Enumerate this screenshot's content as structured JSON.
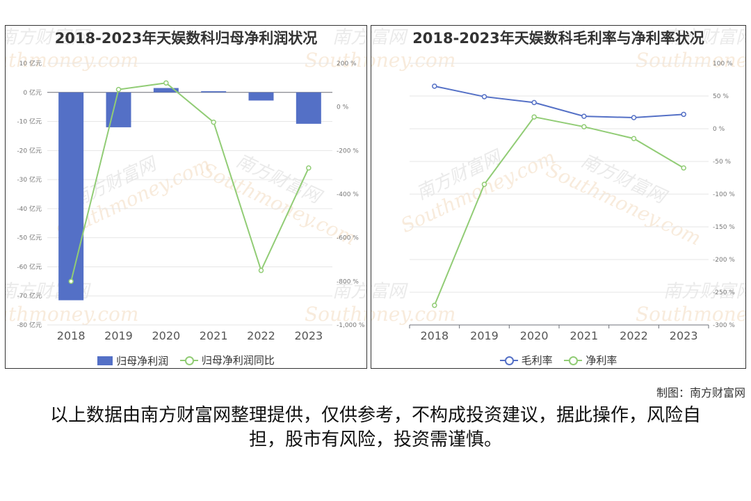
{
  "chart_data": [
    {
      "type": "bar",
      "title": "2018-2023年天娱数科归母净利润状况",
      "categories": [
        "2018",
        "2019",
        "2020",
        "2021",
        "2022",
        "2023"
      ],
      "series": [
        {
          "name": "归母净利润",
          "axis": "left",
          "type": "bar",
          "color": "#5470c6",
          "values": [
            -71.5,
            -12.0,
            1.5,
            0.4,
            -2.8,
            -10.8
          ]
        },
        {
          "name": "归母净利润同比",
          "axis": "right",
          "type": "line",
          "color": "#91cc75",
          "values": [
            -800,
            80,
            110,
            -70,
            -750,
            -280
          ]
        }
      ],
      "y_left": {
        "ticks": [
          10,
          0,
          -10,
          -20,
          -30,
          -40,
          -50,
          -60,
          -70,
          -80
        ],
        "unit": "亿元",
        "ylim": [
          -80,
          10
        ]
      },
      "y_right": {
        "ticks": [
          200,
          0,
          -200,
          -400,
          -600,
          -800,
          -1000
        ],
        "unit": "%",
        "ylim": [
          -1000,
          200
        ],
        "tick_labels": [
          "200 %",
          "0 %",
          "-200 %",
          "-400 %",
          "-600 %",
          "-800 %",
          "-1,000 %"
        ]
      },
      "legend": "bottom"
    },
    {
      "type": "line",
      "title": "2018-2023年天娱数科毛利率与净利率状况",
      "categories": [
        "2018",
        "2019",
        "2020",
        "2021",
        "2022",
        "2023"
      ],
      "series": [
        {
          "name": "毛利率",
          "color": "#5470c6",
          "values": [
            65,
            49,
            40,
            19,
            17,
            22
          ]
        },
        {
          "name": "净利率",
          "color": "#91cc75",
          "values": [
            -270,
            -85,
            18,
            3,
            -15,
            -60
          ]
        }
      ],
      "y_right": {
        "ticks": [
          100,
          50,
          0,
          -50,
          -100,
          -150,
          -200,
          -250,
          -300
        ],
        "unit": "%",
        "ylim": [
          -300,
          100
        ]
      },
      "legend": "bottom"
    }
  ],
  "watermark": {
    "cn": "南方财富网",
    "en": "Southmoney.com"
  },
  "credit": "制图：南方财富网",
  "disclaimer": "以上数据由南方财富网整理提供，仅供参考，不构成投资建议，据此操作，风险自担，股市有风险，投资需谨慎。"
}
